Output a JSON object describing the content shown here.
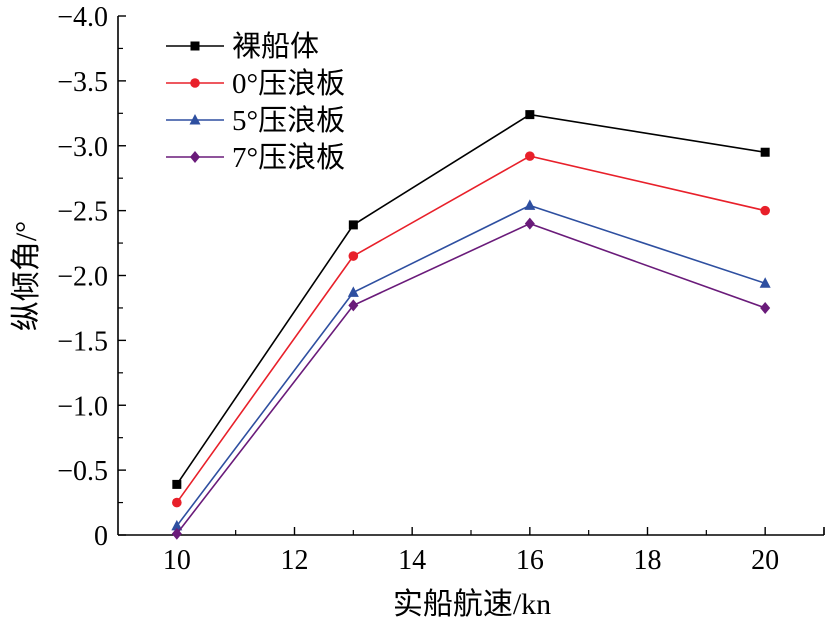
{
  "chart_data": {
    "type": "line",
    "xlabel": "实船航速/kn",
    "ylabel": "纵倾角/°",
    "xlim": [
      9,
      21
    ],
    "ylim": [
      0,
      -4.0
    ],
    "x_ticks": [
      "10",
      "12",
      "14",
      "16",
      "18",
      "20"
    ],
    "y_ticks": [
      "0",
      "−0.5",
      "−1.0",
      "−1.5",
      "−2.0",
      "−2.5",
      "−3.0",
      "−3.5",
      "−4.0"
    ],
    "x": [
      10,
      13,
      16,
      20
    ],
    "series": [
      {
        "name": "裸船体",
        "color": "#000000",
        "marker": "square",
        "values": [
          -0.39,
          -2.39,
          -3.24,
          -2.95
        ]
      },
      {
        "name": "0°压浪板",
        "color": "#e8202a",
        "marker": "circle",
        "values": [
          -0.25,
          -2.15,
          -2.92,
          -2.5
        ]
      },
      {
        "name": "5°压浪板",
        "color": "#2e4fa0",
        "marker": "triangle",
        "values": [
          -0.07,
          -1.87,
          -2.54,
          -1.94
        ]
      },
      {
        "name": "7°压浪板",
        "color": "#6a1b7a",
        "marker": "diamond",
        "values": [
          -0.01,
          -1.77,
          -2.4,
          -1.75
        ]
      }
    ],
    "legend_position": "top-left",
    "grid": false
  }
}
